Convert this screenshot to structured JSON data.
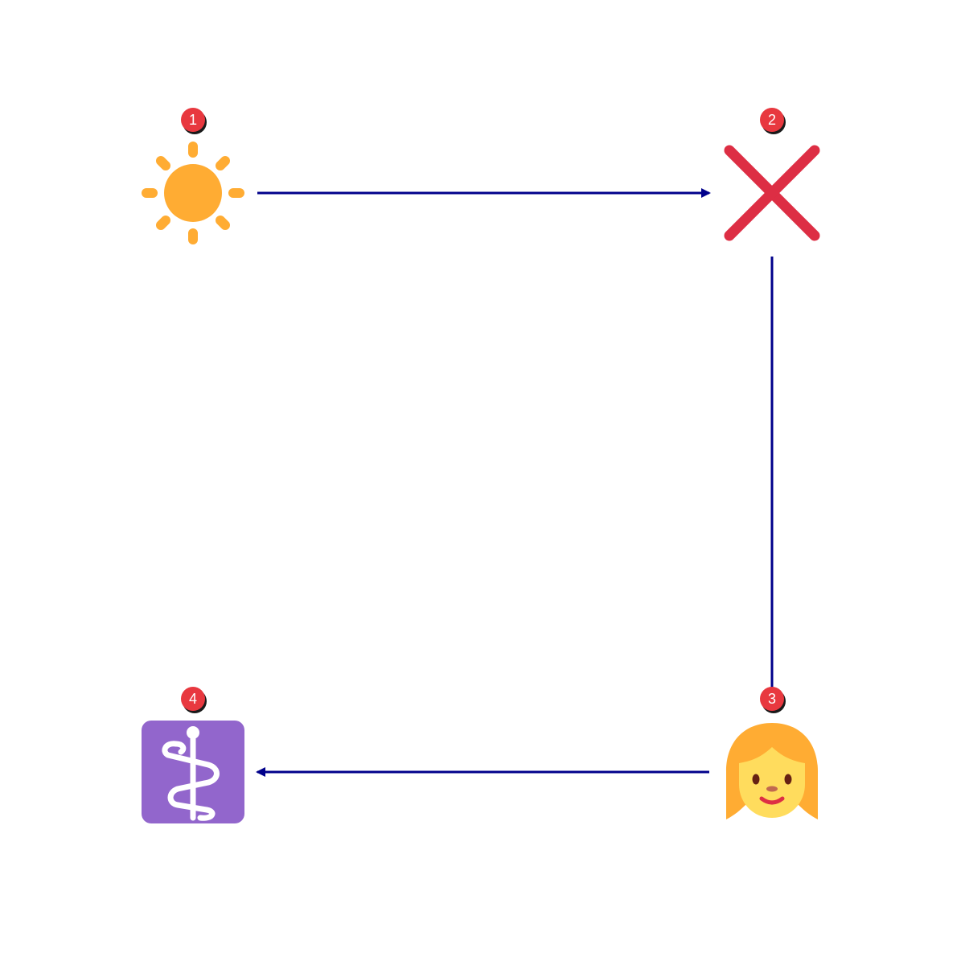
{
  "diagram": {
    "line_color": "#00008b",
    "badge_color": "#e8383f",
    "nodes": [
      {
        "id": "1",
        "label": "1",
        "icon": "sun-icon",
        "color": "#ffac33"
      },
      {
        "id": "2",
        "label": "2",
        "icon": "cross-mark-icon",
        "color": "#dd2e44"
      },
      {
        "id": "3",
        "label": "3",
        "icon": "woman-icon",
        "color": "#ffac33"
      },
      {
        "id": "4",
        "label": "4",
        "icon": "medical-symbol-icon",
        "color": "#9266cc"
      }
    ],
    "edges": [
      {
        "from": "1",
        "to": "2",
        "arrow": "to"
      },
      {
        "from": "2",
        "to": "3",
        "arrow": "none"
      },
      {
        "from": "3",
        "to": "4",
        "arrow": "to"
      }
    ]
  }
}
